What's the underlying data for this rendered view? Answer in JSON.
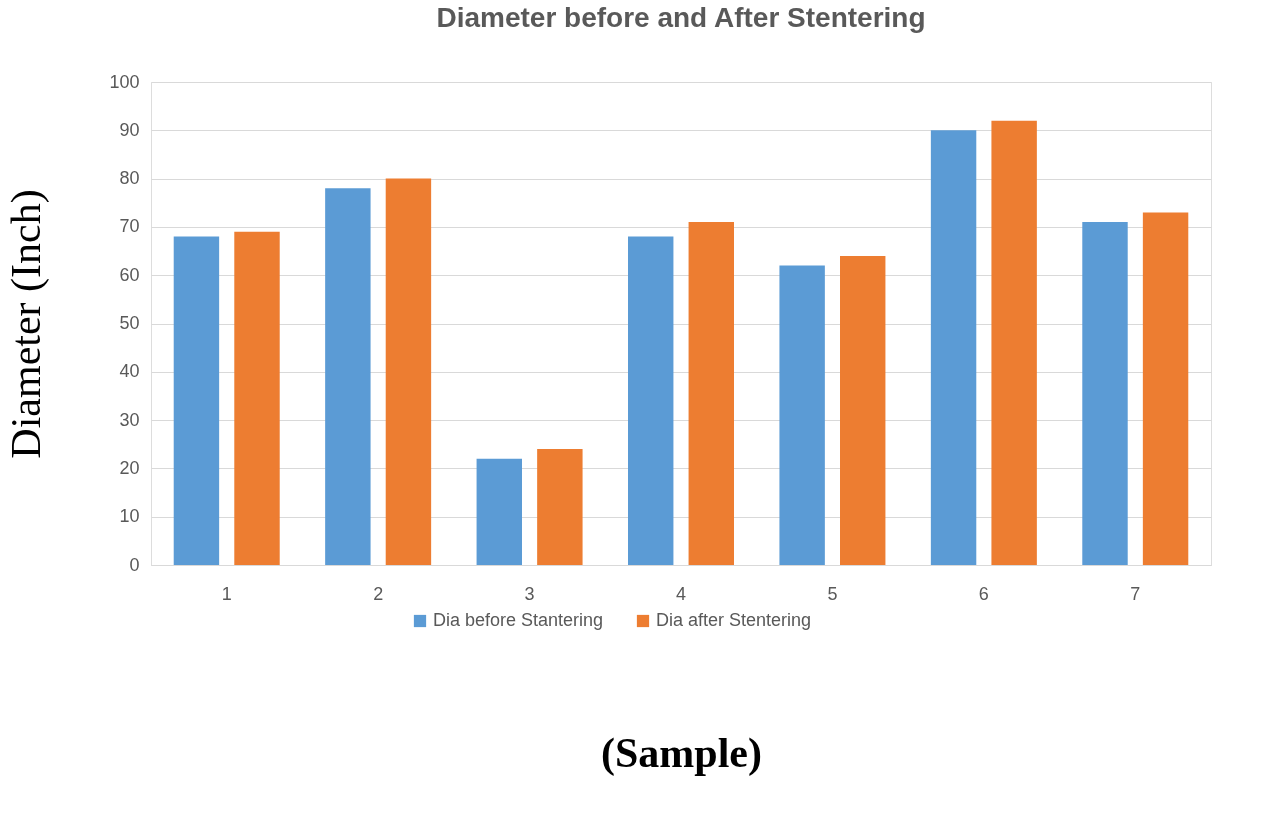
{
  "chart_data": {
    "type": "bar",
    "title": "Diameter before and After Stentering",
    "xlabel": "(Sample)",
    "ylabel": "Diameter (Inch)",
    "categories": [
      "1",
      "2",
      "3",
      "4",
      "5",
      "6",
      "7"
    ],
    "series": [
      {
        "name": "Dia before Stantering",
        "color": "#5b9bd5",
        "values": [
          68,
          78,
          22,
          68,
          62,
          90,
          71
        ]
      },
      {
        "name": "Dia after Stentering",
        "color": "#ed7d31",
        "values": [
          69,
          80,
          24,
          71,
          64,
          92,
          73
        ]
      }
    ],
    "ylim": [
      0,
      100
    ],
    "yticks": [
      0,
      10,
      20,
      30,
      40,
      50,
      60,
      70,
      80,
      90,
      100
    ],
    "grid": "y",
    "legend": "bottom"
  }
}
